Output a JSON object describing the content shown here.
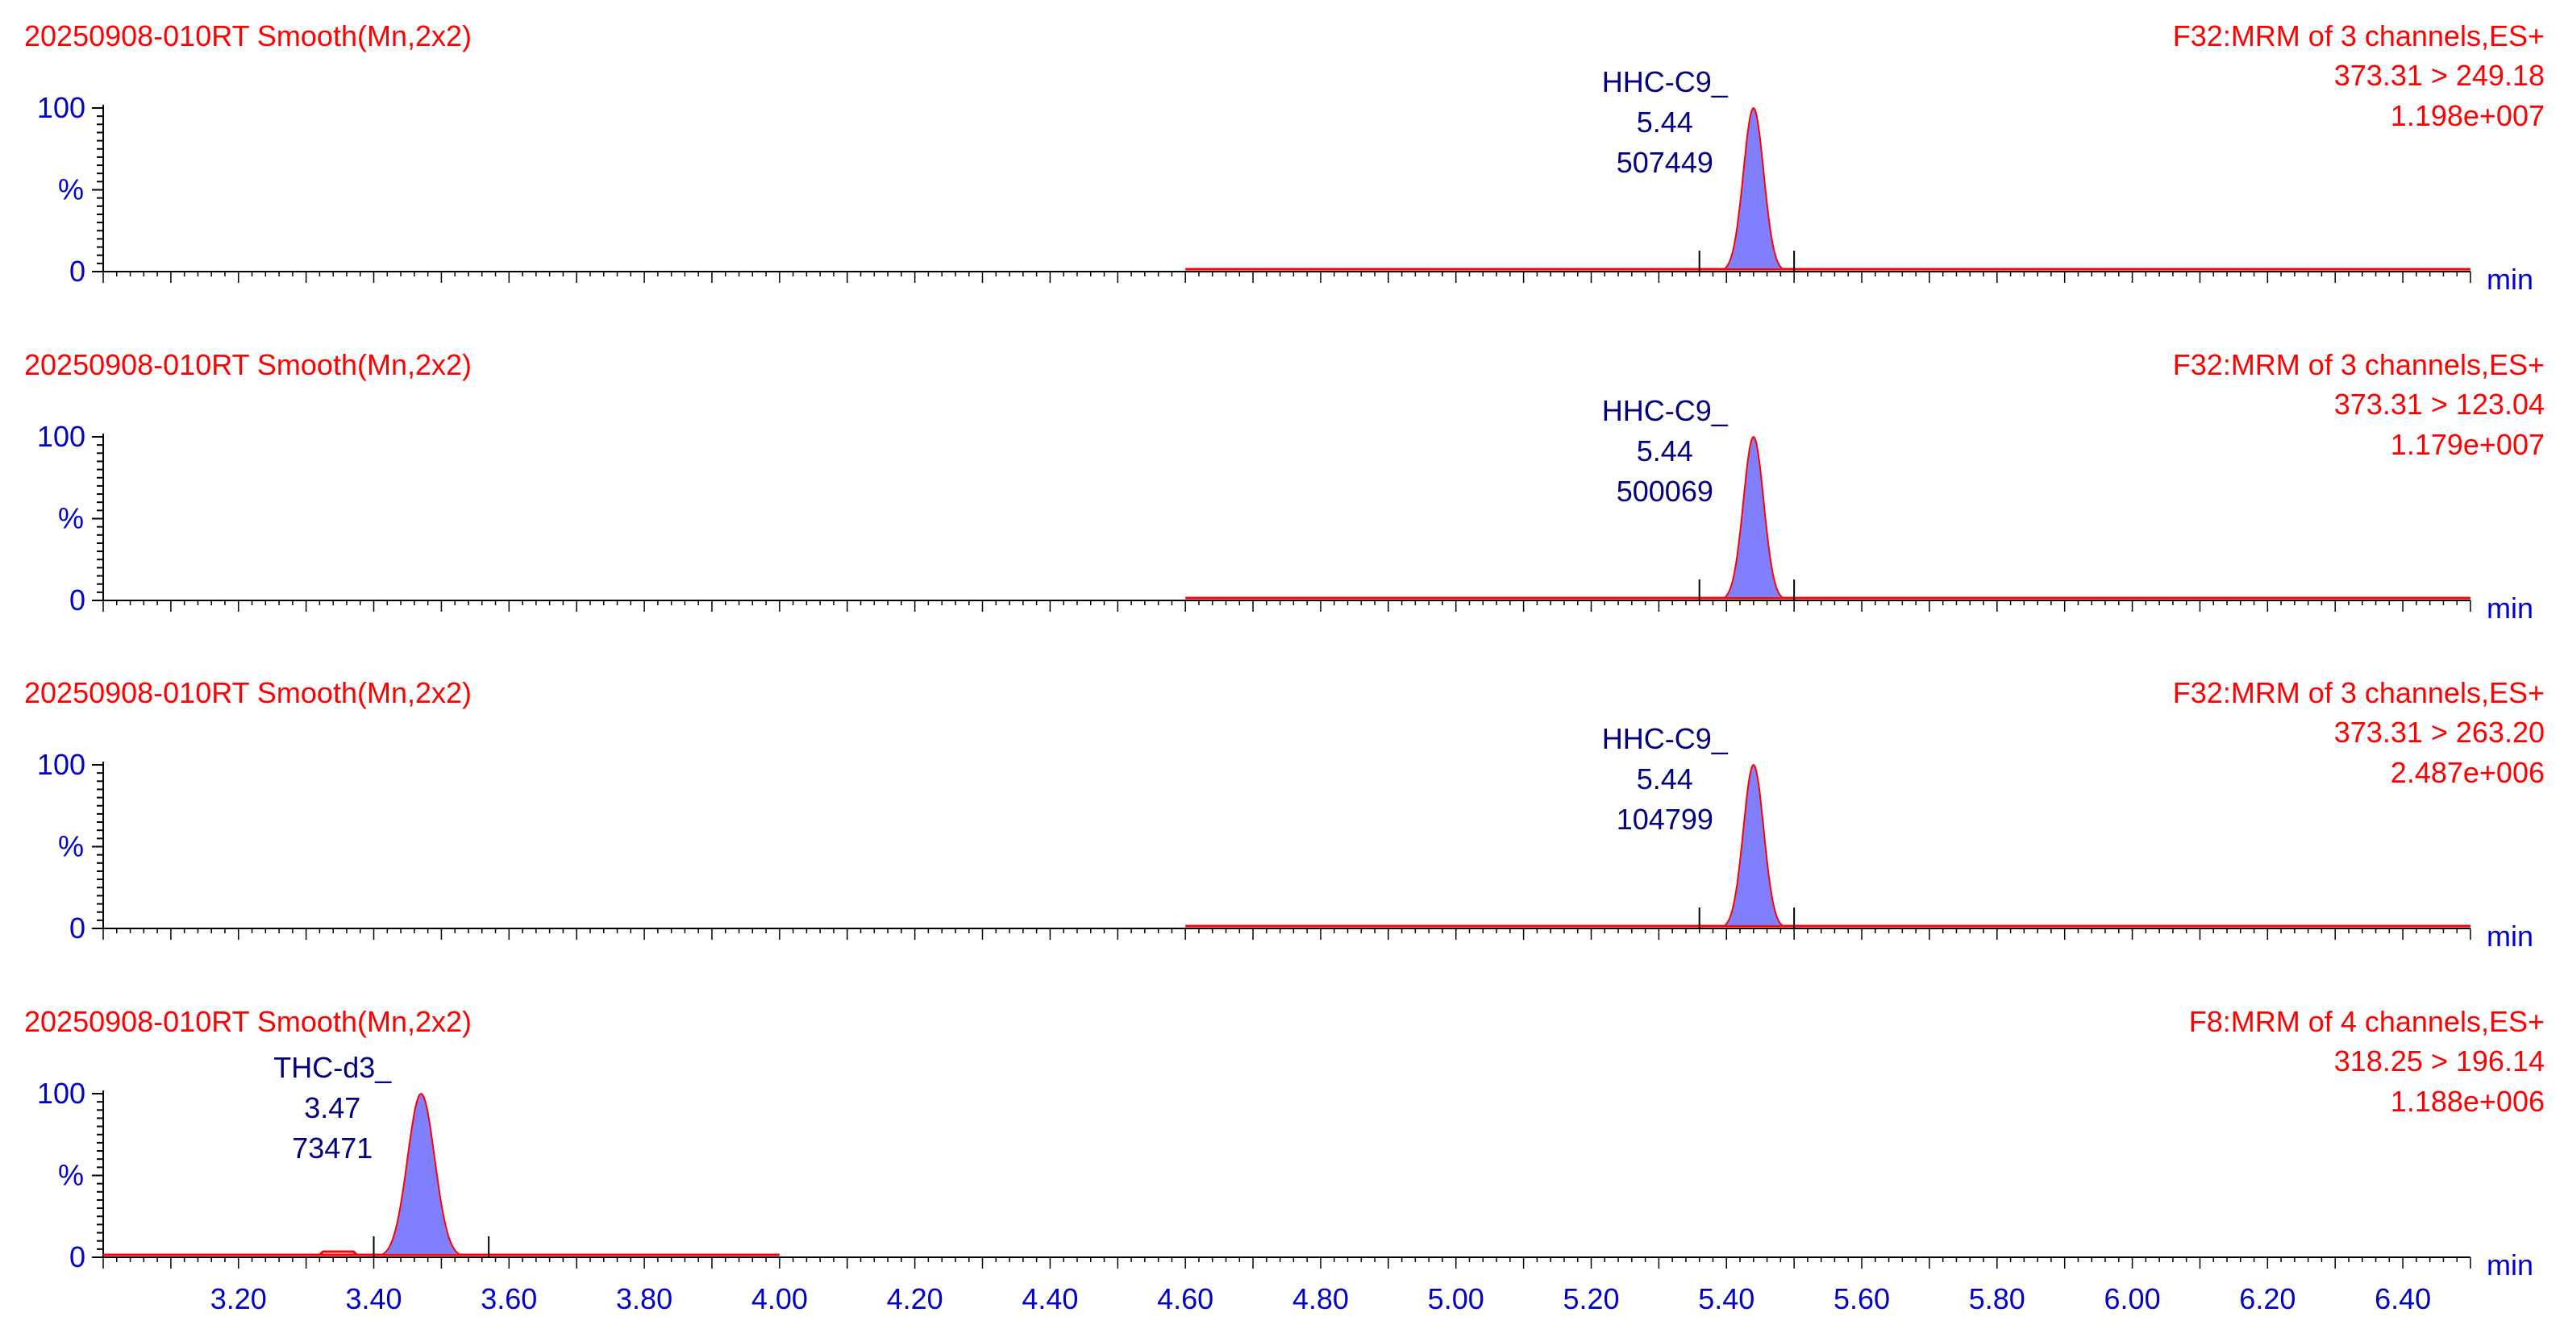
{
  "colors": {
    "header_text": "#ff0000",
    "axis_text": "#0000cc",
    "peak_label_text": "#000080",
    "peak_fill": "#8080ff",
    "trace_line": "#ff0000",
    "axis_line": "#000000"
  },
  "chart_data": [
    {
      "type": "area",
      "title": "20250908-010RT Smooth(Mn,2x2)",
      "function_info": "F32:MRM of 3 channels,ES+",
      "transition": "373.31 > 249.18",
      "intensity": "1.198e+007",
      "xlabel": "min",
      "ylabel": "%",
      "y_ticks": [
        "100",
        "%",
        "0"
      ],
      "xlim": [
        3.0,
        6.5
      ],
      "ylim": [
        0,
        100
      ],
      "trace_range": [
        4.6,
        6.5
      ],
      "peak": {
        "name": "HHC-C9_",
        "rt": "5.44",
        "area": "507449",
        "apex": 5.44,
        "start": 5.36,
        "end": 5.5,
        "sigma": 0.015
      }
    },
    {
      "type": "area",
      "title": "20250908-010RT Smooth(Mn,2x2)",
      "function_info": "F32:MRM of 3 channels,ES+",
      "transition": "373.31 > 123.04",
      "intensity": "1.179e+007",
      "xlabel": "min",
      "ylabel": "%",
      "y_ticks": [
        "100",
        "%",
        "0"
      ],
      "xlim": [
        3.0,
        6.5
      ],
      "ylim": [
        0,
        100
      ],
      "trace_range": [
        4.6,
        6.5
      ],
      "peak": {
        "name": "HHC-C9_",
        "rt": "5.44",
        "area": "500069",
        "apex": 5.44,
        "start": 5.36,
        "end": 5.5,
        "sigma": 0.015
      }
    },
    {
      "type": "area",
      "title": "20250908-010RT Smooth(Mn,2x2)",
      "function_info": "F32:MRM of 3 channels,ES+",
      "transition": "373.31 > 263.20",
      "intensity": "2.487e+006",
      "xlabel": "min",
      "ylabel": "%",
      "y_ticks": [
        "100",
        "%",
        "0"
      ],
      "xlim": [
        3.0,
        6.5
      ],
      "ylim": [
        0,
        100
      ],
      "trace_range": [
        4.6,
        6.5
      ],
      "peak": {
        "name": "HHC-C9_",
        "rt": "5.44",
        "area": "104799",
        "apex": 5.44,
        "start": 5.36,
        "end": 5.5,
        "sigma": 0.015
      }
    },
    {
      "type": "area",
      "title": "20250908-010RT Smooth(Mn,2x2)",
      "function_info": "F8:MRM of 4 channels,ES+",
      "transition": "318.25 > 196.14",
      "intensity": "1.188e+006",
      "xlabel": "min",
      "ylabel": "%",
      "y_ticks": [
        "100",
        "%",
        "0"
      ],
      "xlim": [
        3.0,
        6.5
      ],
      "ylim": [
        0,
        100
      ],
      "trace_range": [
        3.0,
        4.0
      ],
      "x_tick_labels": [
        "3.20",
        "3.40",
        "3.60",
        "3.80",
        "4.00",
        "4.20",
        "4.40",
        "4.60",
        "4.80",
        "5.00",
        "5.20",
        "5.40",
        "5.60",
        "5.80",
        "6.00",
        "6.20",
        "6.40"
      ],
      "peak": {
        "name": "THC-d3_",
        "rt": "3.47",
        "area": "73471",
        "apex": 3.47,
        "start": 3.4,
        "end": 3.57,
        "sigma": 0.02
      }
    }
  ]
}
